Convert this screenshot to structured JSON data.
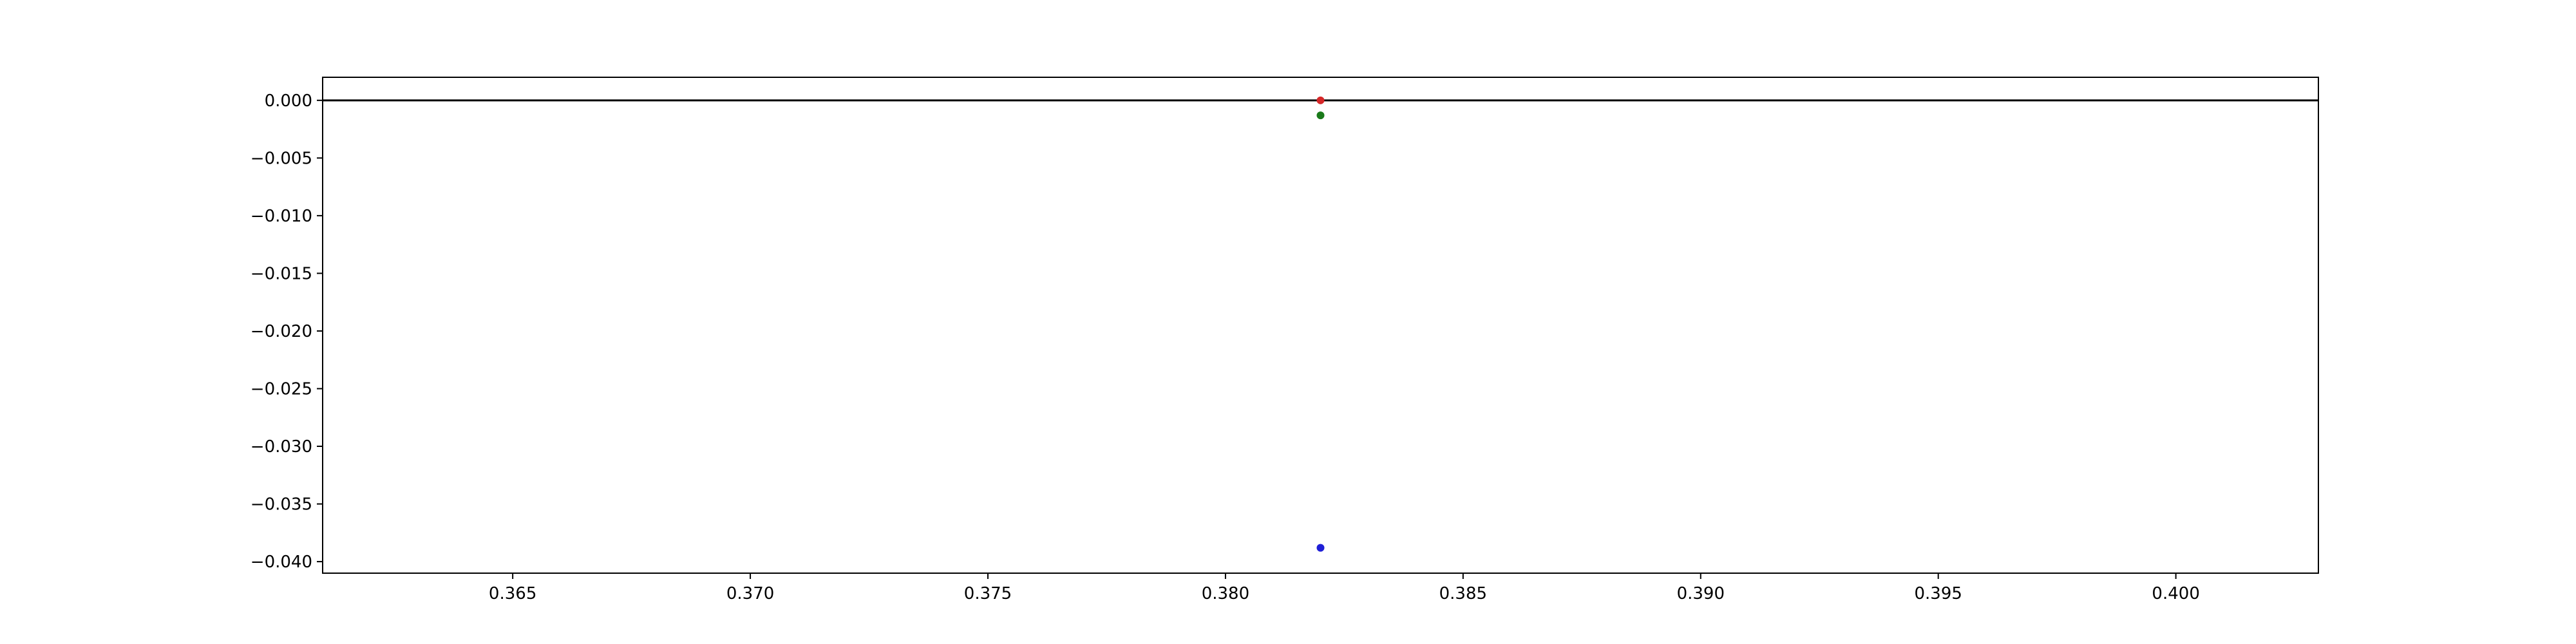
{
  "chart_data": {
    "type": "scatter",
    "title": "",
    "xlabel": "",
    "ylabel": "",
    "xlim": [
      0.361,
      0.403
    ],
    "ylim": [
      -0.041,
      0.002
    ],
    "grid": false,
    "x_ticks": [
      {
        "value": 0.365,
        "label": "0.365"
      },
      {
        "value": 0.37,
        "label": "0.370"
      },
      {
        "value": 0.375,
        "label": "0.375"
      },
      {
        "value": 0.38,
        "label": "0.380"
      },
      {
        "value": 0.385,
        "label": "0.385"
      },
      {
        "value": 0.39,
        "label": "0.390"
      },
      {
        "value": 0.395,
        "label": "0.395"
      },
      {
        "value": 0.4,
        "label": "0.400"
      }
    ],
    "y_ticks": [
      {
        "value": 0.0,
        "label": "0.000"
      },
      {
        "value": -0.005,
        "label": "−0.005"
      },
      {
        "value": -0.01,
        "label": "−0.010"
      },
      {
        "value": -0.015,
        "label": "−0.015"
      },
      {
        "value": -0.02,
        "label": "−0.020"
      },
      {
        "value": -0.025,
        "label": "−0.025"
      },
      {
        "value": -0.03,
        "label": "−0.030"
      },
      {
        "value": -0.035,
        "label": "−0.035"
      },
      {
        "value": -0.04,
        "label": "−0.040"
      }
    ],
    "reference_lines": [
      {
        "orientation": "horizontal",
        "y": 0.0,
        "color": "#000000"
      }
    ],
    "points": [
      {
        "x": 0.382,
        "y": 0.0,
        "color": "#d62728"
      },
      {
        "x": 0.382,
        "y": -0.0013,
        "color": "#1a7a1a"
      },
      {
        "x": 0.382,
        "y": -0.0388,
        "color": "#1f1fd6"
      }
    ]
  }
}
